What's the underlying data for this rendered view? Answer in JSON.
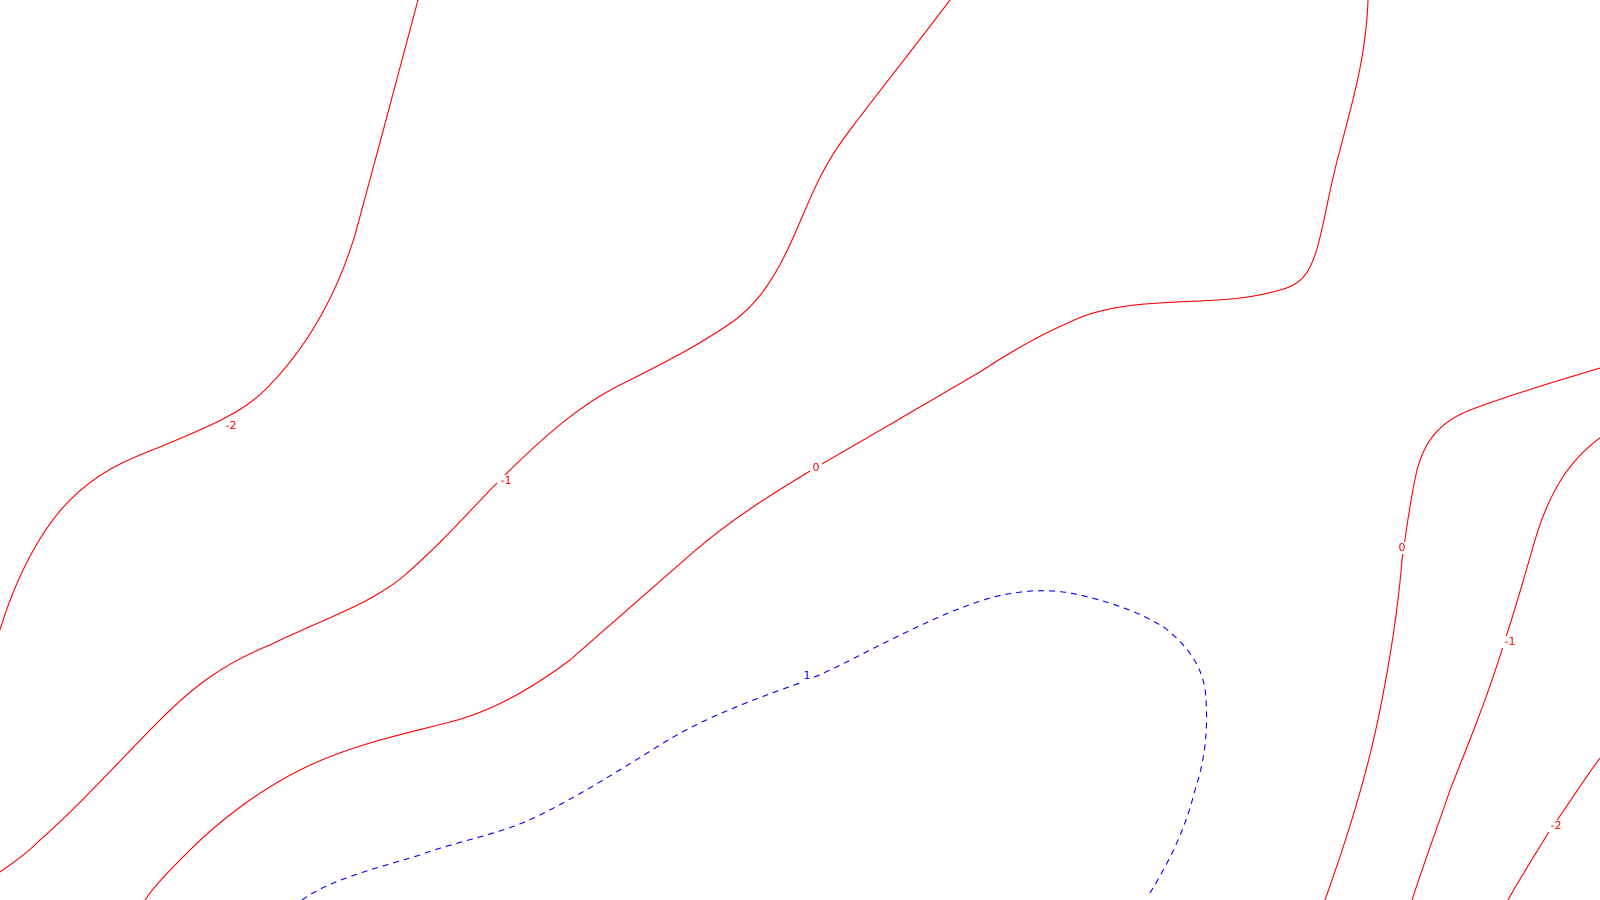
{
  "map": {
    "colors": {
      "negative_and_zero": "#ff0000",
      "positive": "#0000ff",
      "background": "#ffffff"
    },
    "contours": [
      {
        "id": "neg2-left",
        "level": "-2",
        "label": "-2",
        "style": "solid",
        "color": "#ff0000"
      },
      {
        "id": "neg1-left",
        "level": "-1",
        "label": "-1",
        "style": "solid",
        "color": "#ff0000"
      },
      {
        "id": "zero-main",
        "level": "0",
        "label": "0",
        "style": "solid",
        "color": "#ff0000"
      },
      {
        "id": "pos1",
        "level": "1",
        "label": "1",
        "style": "dashed",
        "color": "#0000ff"
      },
      {
        "id": "zero-right",
        "level": "0",
        "label": "0",
        "style": "solid",
        "color": "#ff0000"
      },
      {
        "id": "neg1-right",
        "level": "-1",
        "label": "-1",
        "style": "solid",
        "color": "#ff0000"
      },
      {
        "id": "neg2-right",
        "level": "-2",
        "label": "-2",
        "style": "solid",
        "color": "#ff0000"
      }
    ]
  }
}
